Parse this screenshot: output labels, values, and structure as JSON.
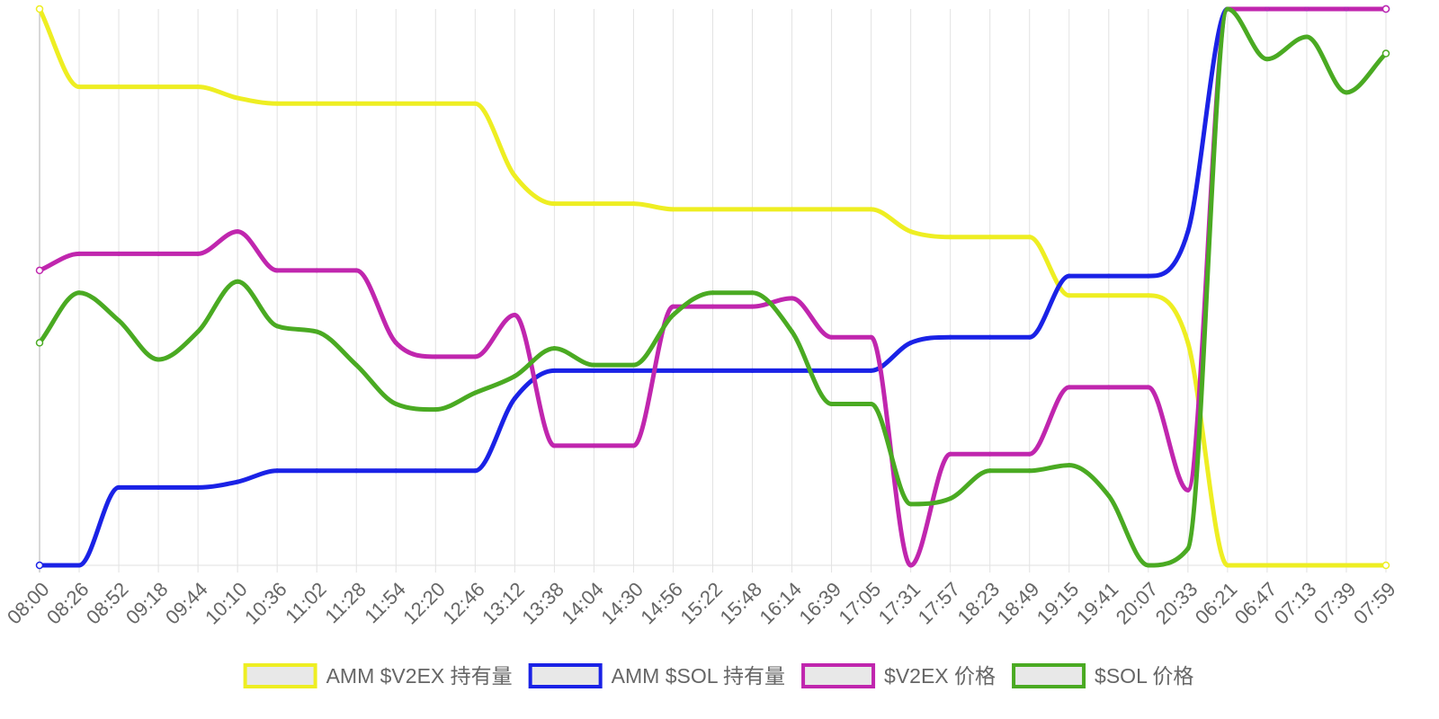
{
  "chart_data": {
    "type": "line",
    "title": "",
    "xlabel": "",
    "ylabel": "",
    "grid": true,
    "y_axis_labels_shown": false,
    "legend_position": "bottom",
    "x": [
      "08:00",
      "08:26",
      "08:52",
      "09:18",
      "09:44",
      "10:10",
      "10:36",
      "11:02",
      "11:28",
      "11:54",
      "12:20",
      "12:46",
      "13:12",
      "13:38",
      "14:04",
      "14:30",
      "14:56",
      "15:22",
      "15:48",
      "16:14",
      "16:39",
      "17:05",
      "17:31",
      "17:57",
      "18:23",
      "18:49",
      "19:15",
      "19:41",
      "20:07",
      "20:33",
      "06:21",
      "06:47",
      "07:13",
      "07:39",
      "07:59"
    ],
    "series": [
      {
        "name": "AMM $V2EX 持有量",
        "color": "#eeee22",
        "values": [
          100,
          86,
          86,
          86,
          86,
          84,
          83,
          83,
          83,
          83,
          83,
          83,
          70,
          65,
          65,
          65,
          64,
          64,
          64,
          64,
          64,
          64,
          60,
          59,
          59,
          59,
          48.5,
          48.5,
          48.5,
          40,
          0,
          0,
          0,
          0,
          0
        ]
      },
      {
        "name": "AMM $SOL 持有量",
        "color": "#1a22e6",
        "values": [
          0,
          0,
          14,
          14,
          14,
          15,
          17,
          17,
          17,
          17,
          17,
          17,
          30,
          35,
          35,
          35,
          35,
          35,
          35,
          35,
          35,
          35,
          40,
          41,
          41,
          41,
          52,
          52,
          52,
          60,
          100,
          100,
          100,
          100,
          100
        ]
      },
      {
        "name": "$V2EX 价格",
        "color": "#c026ae",
        "values": [
          53,
          56,
          56,
          56,
          56,
          60,
          53,
          53,
          53,
          40,
          37.5,
          37.5,
          45,
          21.5,
          21.5,
          21.5,
          46.5,
          46.5,
          46.5,
          48,
          41,
          41,
          0,
          20,
          20,
          20,
          32,
          32,
          32,
          13.5,
          100,
          100,
          100,
          100,
          100
        ]
      },
      {
        "name": "$SOL 价格",
        "color": "#4aaa22",
        "values": [
          40,
          49,
          44,
          37,
          42,
          51,
          43,
          42,
          36,
          29,
          28,
          31,
          34,
          39,
          36,
          36,
          45,
          49,
          49,
          42,
          29,
          29,
          11,
          12,
          17,
          17,
          18,
          12.5,
          0,
          3,
          100,
          91,
          95,
          85,
          92
        ]
      }
    ]
  }
}
